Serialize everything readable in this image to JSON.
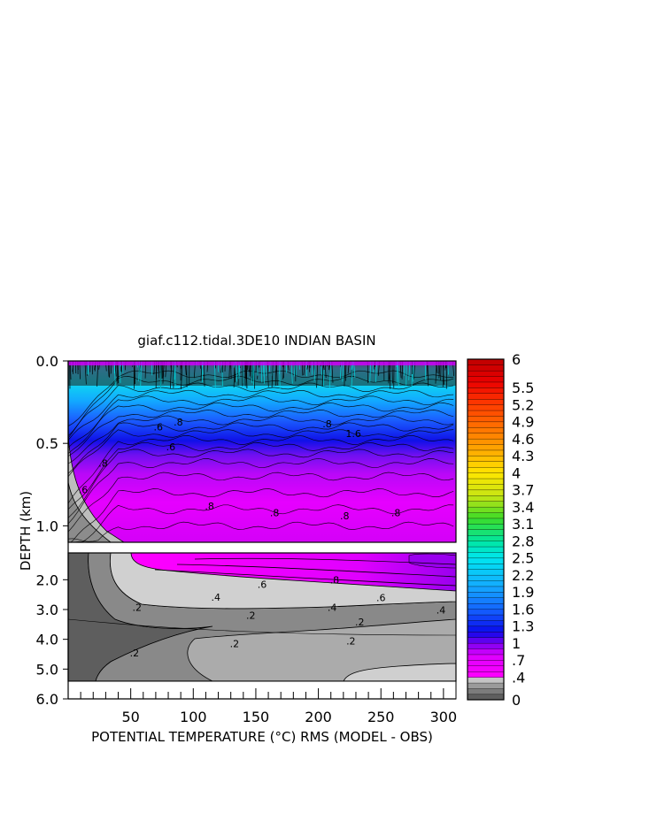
{
  "chart_data": {
    "type": "heatmap",
    "title": "giaf.c112.tidal.3DE10 INDIAN BASIN",
    "xlabel": "POTENTIAL TEMPERATURE (°C) RMS (MODEL - OBS)",
    "ylabel": "DEPTH (km)",
    "x_range": [
      0,
      310
    ],
    "x_ticks": [
      "50",
      "100",
      "150",
      "200",
      "250",
      "300"
    ],
    "x_tick_values": [
      50,
      100,
      150,
      200,
      250,
      300
    ],
    "upper_panel": {
      "y_range": [
        0.0,
        1.1
      ],
      "y_ticks": [
        "0.0",
        "0.5",
        "1.0"
      ],
      "y_tick_values": [
        0.0,
        0.5,
        1.0
      ]
    },
    "lower_panel": {
      "y_range": [
        1.1,
        6.0
      ],
      "y_ticks": [
        "2.0",
        "3.0",
        "4.0",
        "5.0",
        "6.0"
      ],
      "y_tick_values": [
        2.0,
        3.0,
        4.0,
        5.0,
        6.0
      ]
    },
    "colorbar": {
      "min": 0,
      "max": 6,
      "labels": [
        "6",
        "5.5",
        "5.2",
        "4.9",
        "4.6",
        "4.3",
        "4",
        "3.7",
        "3.4",
        "3.1",
        "2.8",
        "2.5",
        "2.2",
        "1.9",
        "1.6",
        "1.3",
        "1",
        ".7",
        ".4",
        "0"
      ],
      "label_values": [
        6,
        5.5,
        5.2,
        4.9,
        4.6,
        4.3,
        4,
        3.7,
        3.4,
        3.1,
        2.8,
        2.5,
        2.2,
        1.9,
        1.6,
        1.3,
        1,
        0.7,
        0.4,
        0
      ]
    },
    "contour_labels": [
      {
        "text": ".6",
        "x": 12,
        "depth": 0.78
      },
      {
        "text": ".8",
        "x": 28,
        "depth": 0.62
      },
      {
        "text": ".8",
        "x": 113,
        "depth": 0.88
      },
      {
        "text": ".8",
        "x": 165,
        "depth": 0.92
      },
      {
        "text": ".8",
        "x": 221,
        "depth": 0.94
      },
      {
        "text": ".8",
        "x": 262,
        "depth": 0.92
      },
      {
        "text": ".6",
        "x": 72,
        "depth": 0.4
      },
      {
        "text": ".8",
        "x": 88,
        "depth": 0.37
      },
      {
        "text": ".8",
        "x": 207,
        "depth": 0.38
      },
      {
        "text": "1.6",
        "x": 228,
        "depth": 0.44
      },
      {
        "text": ".6",
        "x": 82,
        "depth": 0.52
      },
      {
        "text": ".8",
        "x": 213,
        "depth": 2.0
      },
      {
        "text": ".6",
        "x": 155,
        "depth": 2.15
      },
      {
        "text": ".6",
        "x": 250,
        "depth": 2.6
      },
      {
        "text": ".4",
        "x": 118,
        "depth": 2.58
      },
      {
        "text": ".4",
        "x": 211,
        "depth": 2.92
      },
      {
        "text": ".4",
        "x": 298,
        "depth": 3.02
      },
      {
        "text": ".2",
        "x": 55,
        "depth": 2.92
      },
      {
        "text": ".2",
        "x": 146,
        "depth": 3.2
      },
      {
        "text": ".2",
        "x": 233,
        "depth": 3.42
      },
      {
        "text": ".2",
        "x": 53,
        "depth": 4.45
      },
      {
        "text": ".2",
        "x": 133,
        "depth": 4.15
      },
      {
        "text": ".2",
        "x": 226,
        "depth": 4.05
      }
    ],
    "colors": {
      "gray_dark": "#5f5f5f",
      "gray_mid": "#8a8a8a",
      "gray_light": "#adadad",
      "gray_pale": "#cfcfcf",
      "magenta": "#ff00ff",
      "purple": "#9600f0",
      "blue": "#0a0af0",
      "cyan": "#00e6f0"
    }
  }
}
